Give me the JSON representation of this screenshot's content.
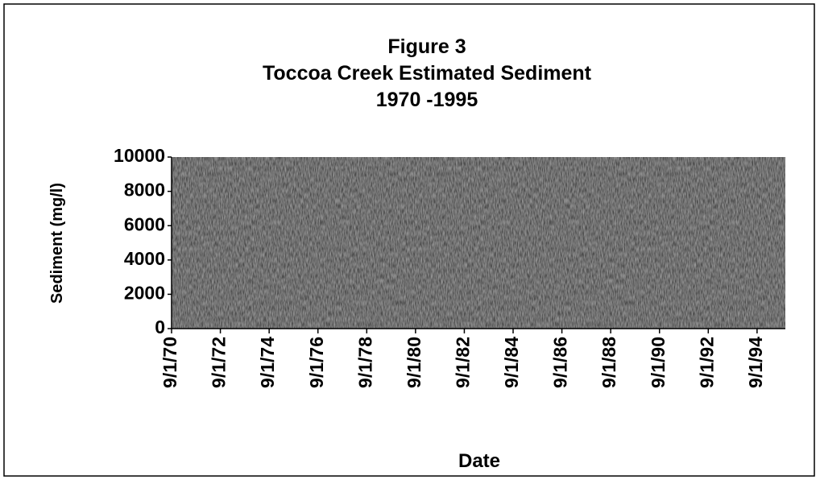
{
  "chart_data": {
    "type": "line",
    "title": [
      "Figure 3",
      "Toccoa Creek Estimated Sediment",
      "1970 -1995"
    ],
    "ylabel": "Sediment (mg/l)",
    "xlabel": "Date",
    "ylim": [
      0,
      10000
    ],
    "yticks": [
      0,
      2000,
      4000,
      6000,
      8000,
      10000
    ],
    "xticks": [
      "9/1/70",
      "9/1/72",
      "9/1/74",
      "9/1/76",
      "9/1/78",
      "9/1/80",
      "9/1/82",
      "9/1/84",
      "9/1/86",
      "9/1/88",
      "9/1/90",
      "9/1/92",
      "9/1/94"
    ],
    "plot_color": "#4d4d4d",
    "grid": false
  }
}
